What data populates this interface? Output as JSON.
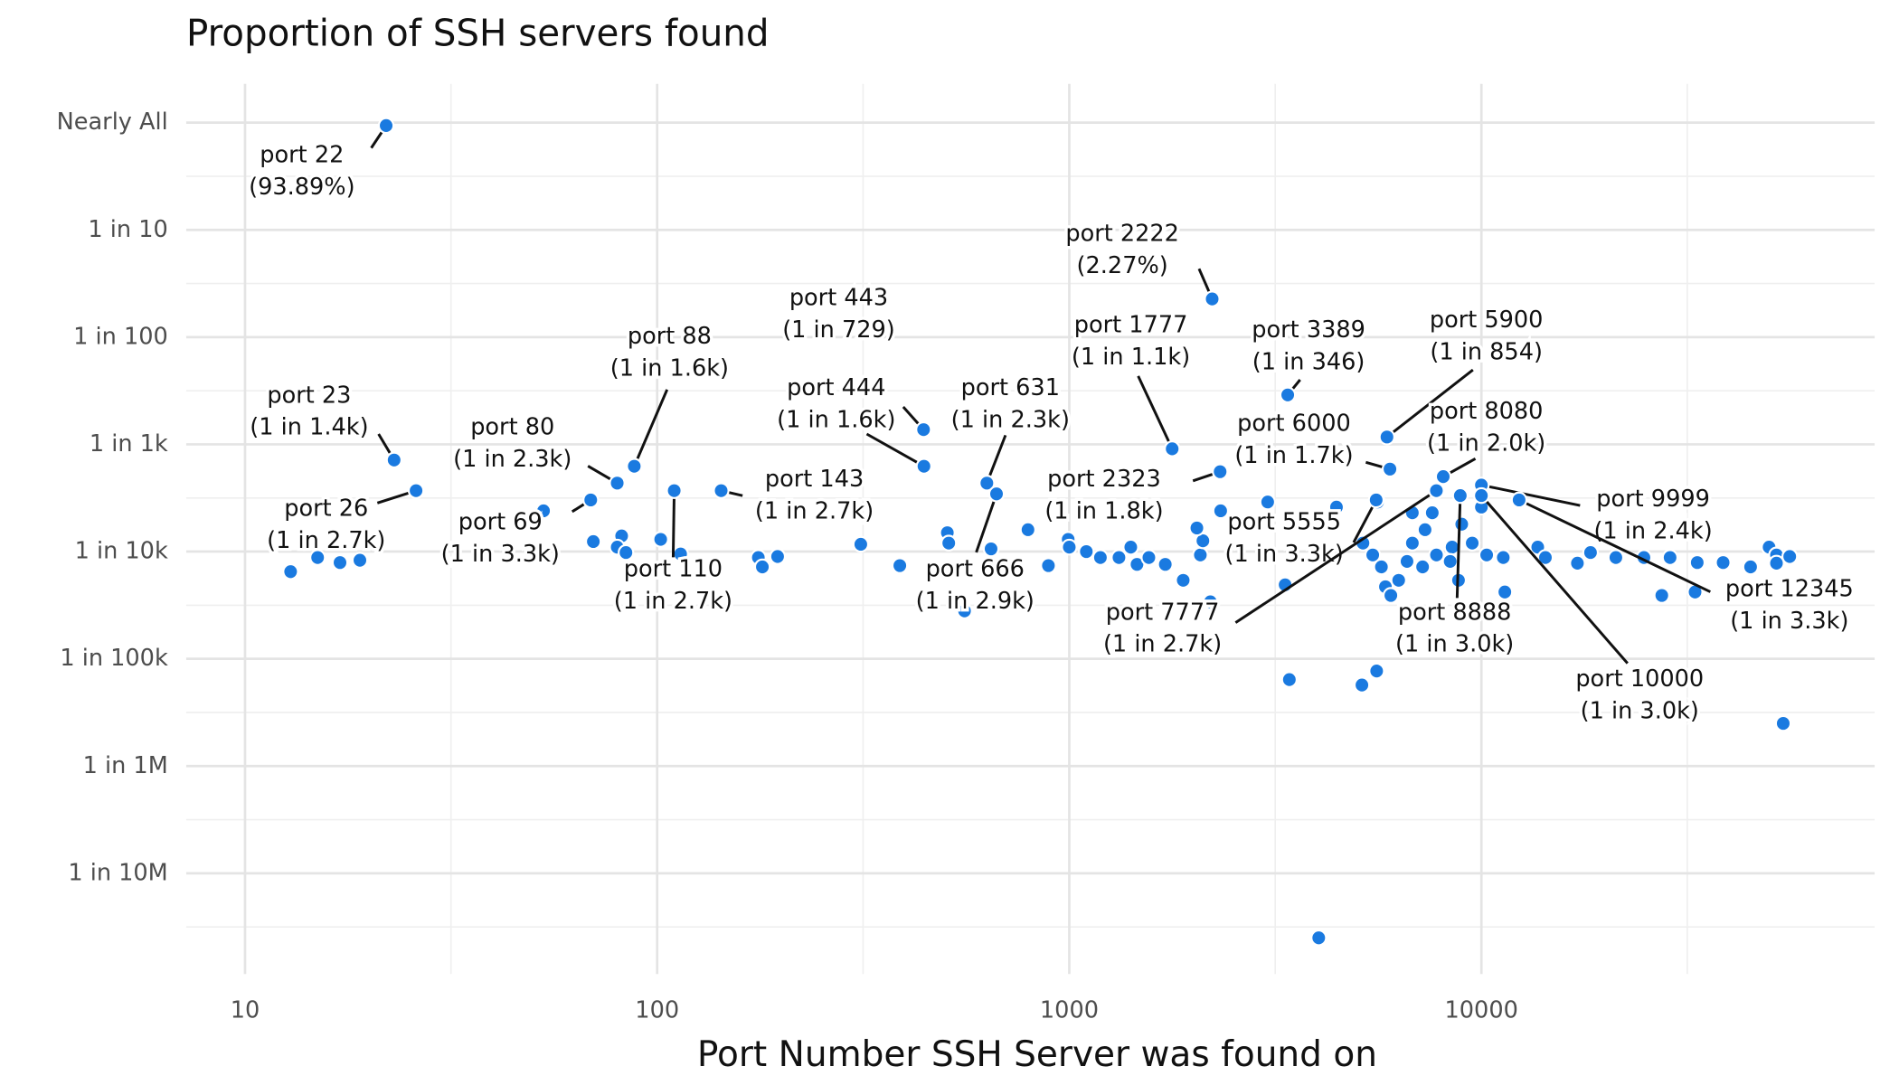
{
  "chart_data": {
    "type": "scatter",
    "title": "Proportion of SSH servers found",
    "x_label": "Port Number SSH Server was found on",
    "log_x": true,
    "log_y": true,
    "grid": true,
    "color": "#1a7ae0",
    "xlim": [
      7.2,
      90000
    ],
    "ylim": [
      1.15e-08,
      2.3
    ],
    "xticks": [
      10,
      100,
      1000,
      10000
    ],
    "x_minor_grid": [
      31.6,
      316,
      3160,
      31600
    ],
    "yticks": [
      {
        "value": 1,
        "label": "Nearly All"
      },
      {
        "value": 0.1,
        "label": "1 in 10"
      },
      {
        "value": 0.01,
        "label": "1 in 100"
      },
      {
        "value": 0.001,
        "label": "1 in 1k"
      },
      {
        "value": 0.0001,
        "label": "1 in 10k"
      },
      {
        "value": 1e-05,
        "label": "1 in 100k"
      },
      {
        "value": 1e-06,
        "label": "1 in 1M"
      },
      {
        "value": 1e-07,
        "label": "1 in 10M"
      }
    ],
    "y_minor_grid": [
      0.316,
      0.0316,
      0.00316,
      0.000316,
      3.16e-05,
      3.16e-06,
      3.16e-07,
      3.16e-08
    ],
    "x": [
      12.9,
      15,
      17,
      19,
      53,
      70,
      82,
      80,
      84,
      102,
      114,
      176,
      180,
      196,
      312,
      388,
      506,
      510,
      557,
      646,
      794,
      890,
      994,
      1000,
      1100,
      1190,
      1320,
      1410,
      1460,
      1560,
      1710,
      1890,
      2080,
      2110,
      2040,
      2200,
      2330,
      3030,
      3340,
      3420,
      4030,
      4450,
      5130,
      5570,
      5160,
      5450,
      5720,
      5850,
      6030,
      6300,
      6600,
      6800,
      7300,
      7600,
      6800,
      5600,
      7200,
      7780,
      8490,
      8960,
      8800,
      8400,
      9500,
      10000,
      10300,
      11300,
      11400,
      13700,
      14300,
      17100,
      18400,
      21200,
      24800,
      28700,
      27400,
      33400,
      38600,
      45000,
      49900,
      52000,
      56000,
      52000,
      54000,
      33000
    ],
    "values": [
      6.5e-05,
      8.8e-05,
      7.9e-05,
      8.3e-05,
      0.00024,
      0.000124,
      0.00014,
      0.00011,
      9.8e-05,
      0.00013,
      9.5e-05,
      8.8e-05,
      7.2e-05,
      9e-05,
      0.000117,
      7.4e-05,
      0.00015,
      0.00012,
      2.8e-05,
      0.000106,
      0.00016,
      7.4e-05,
      0.00013,
      0.00011,
      0.0001,
      8.8e-05,
      8.8e-05,
      0.00011,
      7.6e-05,
      8.8e-05,
      7.6e-05,
      5.4e-05,
      9.3e-05,
      0.000126,
      0.000166,
      3.4e-05,
      0.00024,
      0.00029,
      4.9e-05,
      6.4e-06,
      2.5e-08,
      0.00026,
      5.7e-06,
      7.7e-06,
      0.00012,
      9.3e-05,
      7.2e-05,
      4.7e-05,
      3.9e-05,
      5.4e-05,
      8.1e-05,
      0.00012,
      0.00016,
      0.00023,
      0.00023,
      0.00029,
      7.2e-05,
      9.3e-05,
      0.00011,
      0.00018,
      5.4e-05,
      8.1e-05,
      0.00012,
      0.00026,
      9.3e-05,
      8.8e-05,
      4.2e-05,
      0.00011,
      8.8e-05,
      7.8e-05,
      9.8e-05,
      8.8e-05,
      8.8e-05,
      8.8e-05,
      3.9e-05,
      7.9e-05,
      7.9e-05,
      7.2e-05,
      0.00011,
      9.3e-05,
      9e-05,
      7.8e-05,
      2.5e-06,
      4.2e-05
    ],
    "annotations": [
      {
        "text": [
          "port 22",
          "(93.89%)"
        ],
        "x": 22,
        "y": 0.9389
      },
      {
        "text": [
          "port 23",
          "(1 in 1.4k)"
        ],
        "x": 23,
        "y": 0.000714
      },
      {
        "text": [
          "port 2222",
          "(2.27%)"
        ],
        "x": 2222,
        "y": 0.0227
      },
      {
        "text": [
          "port 443",
          "(1 in 729)"
        ],
        "x": 443,
        "y": 0.001372
      },
      {
        "text": [
          "port 444",
          "(1 in 1.6k)"
        ],
        "x": 444,
        "y": 0.000625
      },
      {
        "text": [
          "port 88",
          "(1 in 1.6k)"
        ],
        "x": 88,
        "y": 0.000625
      },
      {
        "text": [
          "port 80",
          "(1 in 2.3k)"
        ],
        "x": 80,
        "y": 0.000435
      },
      {
        "text": [
          "port 26",
          "(1 in 2.7k)"
        ],
        "x": 26,
        "y": 0.00037
      },
      {
        "text": [
          "port 69",
          "(1 in 3.3k)"
        ],
        "x": 69,
        "y": 0.000303
      },
      {
        "text": [
          "port 110",
          "(1 in 2.7k)"
        ],
        "x": 110,
        "y": 0.00037
      },
      {
        "text": [
          "port 143",
          "(1 in 2.7k)"
        ],
        "x": 143,
        "y": 0.00037
      },
      {
        "text": [
          "port 631",
          "(1 in 2.3k)"
        ],
        "x": 631,
        "y": 0.000435
      },
      {
        "text": [
          "port 666",
          "(1 in 2.9k)"
        ],
        "x": 666,
        "y": 0.000345
      },
      {
        "text": [
          "port 1777",
          "(1 in 1.1k)"
        ],
        "x": 1777,
        "y": 0.000909
      },
      {
        "text": [
          "port 2323",
          "(1 in 1.8k)"
        ],
        "x": 2323,
        "y": 0.000556
      },
      {
        "text": [
          "port 3389",
          "(1 in 346)"
        ],
        "x": 3389,
        "y": 0.00289
      },
      {
        "text": [
          "port 6000",
          "(1 in 1.7k)"
        ],
        "x": 6000,
        "y": 0.000588
      },
      {
        "text": [
          "port 5900",
          "(1 in 854)"
        ],
        "x": 5900,
        "y": 0.001171
      },
      {
        "text": [
          "port 8080",
          "(1 in 2.0k)"
        ],
        "x": 8080,
        "y": 0.0005
      },
      {
        "text": [
          "port 5555",
          "(1 in 3.3k)"
        ],
        "x": 5555,
        "y": 0.000303
      },
      {
        "text": [
          "port 7777",
          "(1 in 2.7k)"
        ],
        "x": 7777,
        "y": 0.00037
      },
      {
        "text": [
          "port 8888",
          "(1 in 3.0k)"
        ],
        "x": 8888,
        "y": 0.000333
      },
      {
        "text": [
          "port 9999",
          "(1 in 2.4k)"
        ],
        "x": 9999,
        "y": 0.000417
      },
      {
        "text": [
          "port 10000",
          "(1 in 3.0k)"
        ],
        "x": 10000,
        "y": 0.000333
      },
      {
        "text": [
          "port 12345",
          "(1 in 3.3k)"
        ],
        "x": 12345,
        "y": 0.000303
      }
    ]
  }
}
